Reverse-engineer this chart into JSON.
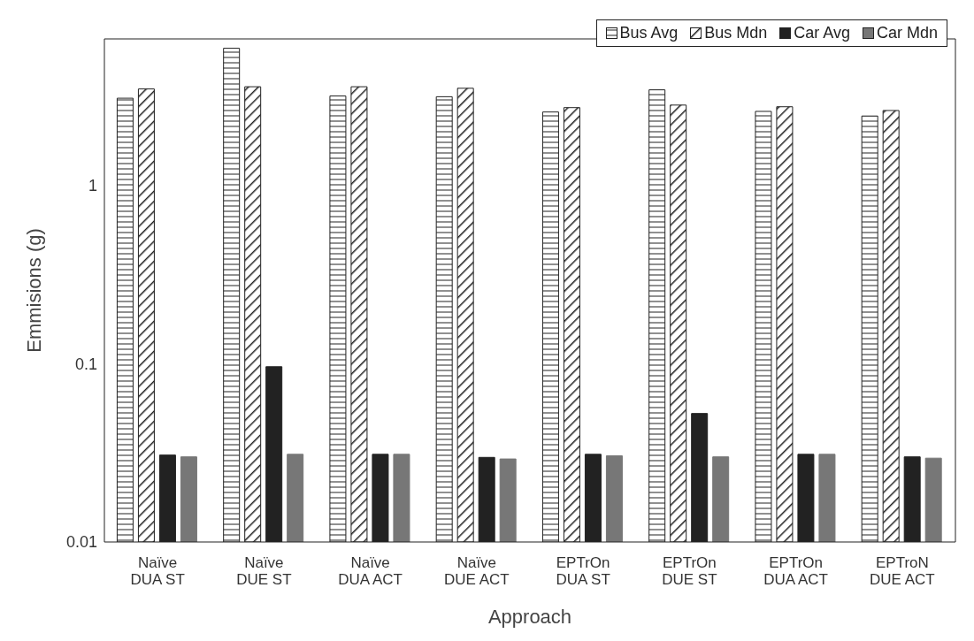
{
  "chart_data": {
    "type": "bar",
    "xlabel": "Approach",
    "ylabel": "Emmisions (g)",
    "categories": [
      "Naïve DUA ST",
      "Naïve DUE ST",
      "Naïve DUA ACT",
      "Naïve DUE ACT",
      "EPTrOn DUA ST",
      "EPTrOn DUE ST",
      "EPTrOn DUA ACT",
      "EPTroN DUE ACT"
    ],
    "series": [
      {
        "name": "Bus Avg",
        "color": "#222222",
        "values": [
          3.07,
          5.85,
          3.16,
          3.13,
          2.57,
          3.42,
          2.59,
          2.44
        ]
      },
      {
        "name": "Bus Mdn",
        "color": "#222222",
        "values": [
          3.46,
          3.56,
          3.56,
          3.49,
          2.72,
          2.81,
          2.75,
          2.62
        ]
      },
      {
        "name": "Car Avg",
        "color": "#222222",
        "values": [
          0.0307,
          0.096,
          0.031,
          0.0298,
          0.031,
          0.0525,
          0.031,
          0.03
        ]
      },
      {
        "name": "Car Mdn",
        "color": "#777777",
        "values": [
          0.03,
          0.031,
          0.031,
          0.0292,
          0.0304,
          0.03,
          0.031,
          0.0295
        ]
      }
    ],
    "log": true,
    "ylim": [
      0.01,
      6.6
    ],
    "yticks": [
      0.01,
      0.1,
      1
    ],
    "grid": false,
    "legend": "top right"
  }
}
